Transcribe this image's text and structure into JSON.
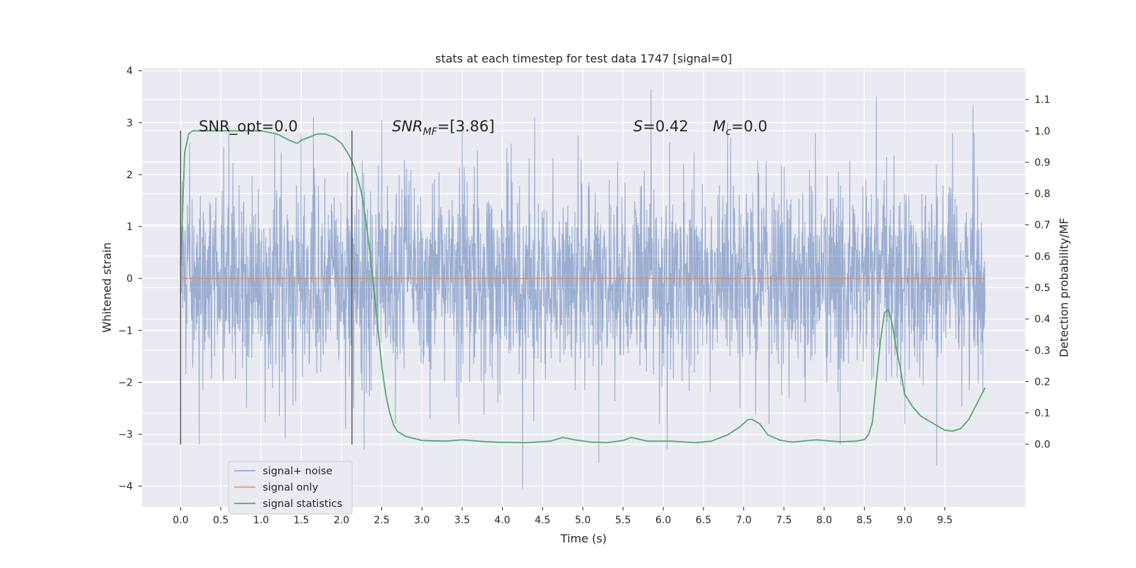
{
  "chart_data": {
    "type": "line",
    "title": "stats at each timestep for test data 1747 [signal=0]",
    "xlabel": "Time (s)",
    "ylabel_left": "Whitened strain",
    "ylabel_right": "Detection probability/MF",
    "xlim": [
      -0.48,
      10.5
    ],
    "ylim_left": [
      -4.4,
      4.05
    ],
    "ylim_right": [
      -0.2,
      1.2
    ],
    "x_ticks": [
      0.0,
      0.5,
      1.0,
      1.5,
      2.0,
      2.5,
      3.0,
      3.5,
      4.0,
      4.5,
      5.0,
      5.5,
      6.0,
      6.5,
      7.0,
      7.5,
      8.0,
      8.5,
      9.0,
      9.5
    ],
    "y_ticks_left": [
      -4,
      -3,
      -2,
      -1,
      0,
      1,
      2,
      3,
      4
    ],
    "y_ticks_right": [
      0.0,
      0.1,
      0.2,
      0.3,
      0.4,
      0.5,
      0.6,
      0.7,
      0.8,
      0.9,
      1.0,
      1.1
    ],
    "grid": true,
    "legend_position": "lower-left",
    "series": [
      {
        "name": "signal+ noise",
        "color": "#4c72b0",
        "axis": "left",
        "x_range": [
          0.0,
          10.0
        ],
        "typical_amplitude": 1.0,
        "peaks": [
          {
            "x": 0.11,
            "y": 2.6
          },
          {
            "x": 0.23,
            "y": -3.2
          },
          {
            "x": 0.6,
            "y": 2.95
          },
          {
            "x": 1.3,
            "y": -3.1
          },
          {
            "x": 1.65,
            "y": 3.1
          },
          {
            "x": 2.05,
            "y": -2.9
          },
          {
            "x": 2.28,
            "y": -3.3
          },
          {
            "x": 2.5,
            "y": 3.05
          },
          {
            "x": 3.1,
            "y": -2.7
          },
          {
            "x": 3.5,
            "y": 3.0
          },
          {
            "x": 4.25,
            "y": -4.05
          },
          {
            "x": 4.4,
            "y": 3.1
          },
          {
            "x": 5.2,
            "y": -3.55
          },
          {
            "x": 5.85,
            "y": 3.65
          },
          {
            "x": 6.05,
            "y": -3.3
          },
          {
            "x": 6.8,
            "y": 3.0
          },
          {
            "x": 8.2,
            "y": -3.2
          },
          {
            "x": 8.65,
            "y": 3.5
          },
          {
            "x": 9.4,
            "y": -3.6
          },
          {
            "x": 9.85,
            "y": 3.35
          }
        ]
      },
      {
        "name": "signal only",
        "color": "#dd8452",
        "axis": "left",
        "x": [
          0.0,
          10.0
        ],
        "y": [
          0.0,
          0.0
        ]
      },
      {
        "name": "signal statistics",
        "color": "#55a868",
        "axis": "right",
        "x": [
          0.0,
          0.05,
          0.1,
          0.15,
          0.2,
          0.3,
          0.5,
          0.8,
          1.0,
          1.2,
          1.35,
          1.45,
          1.5,
          1.6,
          1.7,
          1.8,
          1.9,
          2.0,
          2.05,
          2.1,
          2.15,
          2.2,
          2.25,
          2.3,
          2.35,
          2.4,
          2.45,
          2.5,
          2.55,
          2.6,
          2.65,
          2.7,
          2.8,
          3.0,
          3.3,
          3.5,
          3.8,
          4.0,
          4.3,
          4.6,
          4.75,
          4.9,
          5.1,
          5.3,
          5.5,
          5.6,
          5.8,
          6.1,
          6.4,
          6.6,
          6.8,
          6.95,
          7.05,
          7.1,
          7.2,
          7.3,
          7.45,
          7.6,
          7.9,
          8.2,
          8.4,
          8.5,
          8.55,
          8.6,
          8.65,
          8.7,
          8.75,
          8.8,
          8.85,
          8.9,
          8.95,
          9.0,
          9.1,
          9.2,
          9.4,
          9.5,
          9.6,
          9.7,
          9.8,
          9.9,
          10.0
        ],
        "y": [
          0.57,
          0.93,
          0.99,
          1.0,
          1.0,
          1.0,
          1.0,
          1.0,
          1.0,
          0.99,
          0.97,
          0.96,
          0.97,
          0.98,
          0.99,
          0.99,
          0.98,
          0.96,
          0.94,
          0.92,
          0.89,
          0.85,
          0.8,
          0.72,
          0.62,
          0.5,
          0.38,
          0.25,
          0.16,
          0.1,
          0.06,
          0.04,
          0.025,
          0.012,
          0.01,
          0.014,
          0.008,
          0.006,
          0.005,
          0.01,
          0.022,
          0.014,
          0.007,
          0.005,
          0.012,
          0.022,
          0.01,
          0.01,
          0.005,
          0.01,
          0.03,
          0.055,
          0.078,
          0.08,
          0.065,
          0.03,
          0.013,
          0.007,
          0.014,
          0.008,
          0.01,
          0.015,
          0.03,
          0.07,
          0.2,
          0.33,
          0.42,
          0.43,
          0.38,
          0.3,
          0.24,
          0.16,
          0.12,
          0.09,
          0.06,
          0.045,
          0.042,
          0.05,
          0.08,
          0.13,
          0.18
        ]
      }
    ],
    "vlines": [
      {
        "x": 0.0,
        "y": [
          -3.2,
          2.85
        ],
        "color": "#555555"
      },
      {
        "x": 2.13,
        "y": [
          -3.2,
          2.85
        ],
        "color": "#555555"
      }
    ],
    "annotations": [
      {
        "text": "SNR_opt=0.0",
        "x": 0.2,
        "y": 2.95
      },
      {
        "text_main": "SNR",
        "text_sub": "MF",
        "text_rest": "=[3.86]",
        "x": 2.6,
        "y": 2.95
      },
      {
        "text_main": "S",
        "text_rest": "=0.42",
        "x": 5.6,
        "y": 2.95
      },
      {
        "text_main": "M",
        "text_sub": "c",
        "text_rest": "=0.0",
        "x": 6.6,
        "y": 2.95
      }
    ]
  }
}
